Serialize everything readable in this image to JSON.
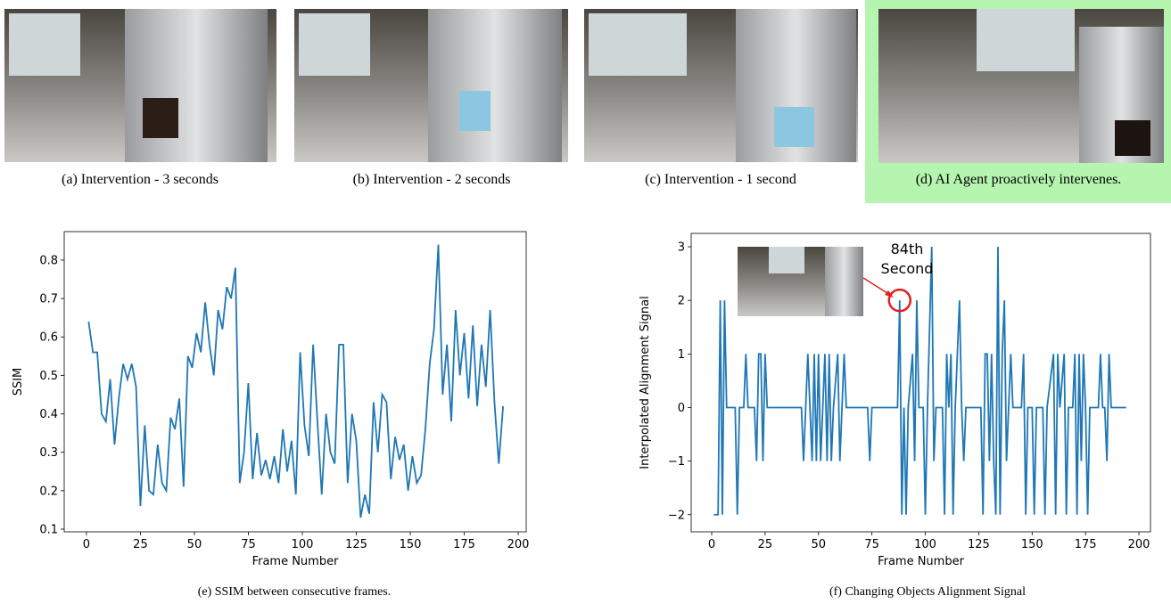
{
  "panels": [
    {
      "caption": "(a) Intervention - 3 seconds"
    },
    {
      "caption": "(b) Intervention - 2 seconds"
    },
    {
      "caption": "(c) Intervention - 1 second"
    },
    {
      "caption": "(d) AI Agent proactively intervenes."
    }
  ],
  "chart_data": [
    {
      "type": "line",
      "caption": "(e) SSIM between consecutive frames.",
      "xlabel": "Frame Number",
      "ylabel": "SSIM",
      "color": "#1f77b4",
      "xlim": [
        -10.3,
        203.7
      ],
      "xticks": [
        0,
        25,
        50,
        75,
        100,
        125,
        150,
        175,
        200
      ],
      "ylim": [
        0.093,
        0.874
      ],
      "yticks": [
        0.1,
        0.2,
        0.3,
        0.4,
        0.5,
        0.6,
        0.7,
        0.8
      ],
      "x": [
        1,
        3,
        5,
        7,
        9,
        11,
        13,
        15,
        17,
        19,
        21,
        23,
        25,
        27,
        29,
        31,
        33,
        35,
        37,
        39,
        41,
        43,
        45,
        47,
        49,
        51,
        53,
        55,
        57,
        59,
        61,
        63,
        65,
        67,
        69,
        71,
        73,
        75,
        77,
        79,
        81,
        83,
        85,
        87,
        89,
        91,
        93,
        95,
        97,
        99,
        101,
        103,
        105,
        107,
        109,
        111,
        113,
        115,
        117,
        119,
        121,
        123,
        125,
        127,
        129,
        131,
        133,
        135,
        137,
        139,
        141,
        143,
        145,
        147,
        149,
        151,
        153,
        155,
        157,
        159,
        161,
        163,
        165,
        167,
        169,
        171,
        173,
        175,
        177,
        179,
        181,
        183,
        185,
        187,
        189,
        191,
        193
      ],
      "values": [
        0.64,
        0.56,
        0.56,
        0.4,
        0.38,
        0.49,
        0.32,
        0.44,
        0.53,
        0.49,
        0.53,
        0.47,
        0.16,
        0.37,
        0.2,
        0.19,
        0.32,
        0.22,
        0.2,
        0.39,
        0.36,
        0.44,
        0.21,
        0.55,
        0.52,
        0.61,
        0.56,
        0.69,
        0.58,
        0.5,
        0.67,
        0.62,
        0.73,
        0.7,
        0.78,
        0.22,
        0.3,
        0.48,
        0.23,
        0.35,
        0.24,
        0.28,
        0.23,
        0.29,
        0.22,
        0.36,
        0.25,
        0.33,
        0.19,
        0.56,
        0.37,
        0.29,
        0.58,
        0.38,
        0.19,
        0.4,
        0.3,
        0.27,
        0.58,
        0.58,
        0.22,
        0.4,
        0.33,
        0.13,
        0.19,
        0.14,
        0.43,
        0.3,
        0.45,
        0.43,
        0.23,
        0.34,
        0.28,
        0.32,
        0.2,
        0.29,
        0.22,
        0.24,
        0.36,
        0.53,
        0.62,
        0.84,
        0.45,
        0.58,
        0.38,
        0.67,
        0.5,
        0.61,
        0.44,
        0.63,
        0.42,
        0.58,
        0.47,
        0.67,
        0.43,
        0.27,
        0.42
      ]
    },
    {
      "type": "line",
      "caption": "(f) Changing Objects Alignment Signal",
      "xlabel": "Frame Number",
      "ylabel": "Interpolated Alignment Signal",
      "color": "#1f77b4",
      "xlim": [
        -9.6,
        205.4
      ],
      "xticks": [
        0,
        25,
        50,
        75,
        100,
        125,
        150,
        175,
        200
      ],
      "ylim": [
        -2.32,
        3.25
      ],
      "yticks": [
        {
          "value": -2,
          "label": "−2"
        },
        {
          "value": -1,
          "label": "−1"
        },
        0,
        1,
        2,
        3
      ],
      "annotation": [
        "84th",
        "Second"
      ],
      "x": [
        1,
        3,
        4,
        5,
        6,
        7,
        11,
        12,
        13,
        15,
        16,
        17,
        20,
        21,
        22,
        23,
        24,
        25,
        26,
        42,
        43,
        45,
        46,
        47,
        48,
        49,
        50,
        51,
        52,
        53,
        54,
        55,
        56,
        57,
        59,
        60,
        61,
        62,
        63,
        73,
        74,
        75,
        87,
        88,
        89,
        90,
        91,
        92,
        94,
        95,
        96,
        97,
        99,
        100,
        101,
        103,
        104,
        105,
        108,
        109,
        110,
        111,
        112,
        113,
        114,
        115,
        116,
        117,
        118,
        119,
        126,
        127,
        128,
        129,
        130,
        131,
        132,
        133,
        134,
        135,
        136,
        137,
        138,
        139,
        140,
        141,
        145,
        146,
        147,
        148,
        150,
        151,
        152,
        155,
        156,
        157,
        160,
        161,
        162,
        163,
        165,
        166,
        167,
        169,
        170,
        171,
        172,
        173,
        174,
        175,
        176,
        177,
        181,
        182,
        183,
        184,
        185,
        186,
        187,
        194
      ],
      "values": [
        -2,
        -2,
        2,
        -2,
        2,
        0,
        0,
        -2,
        0,
        0,
        1,
        0,
        0,
        -1,
        1,
        1,
        -1,
        1,
        0,
        0,
        -1,
        1,
        0,
        -1,
        1,
        -1,
        1,
        -1,
        0,
        1,
        -1,
        1,
        -1,
        0,
        1,
        -1,
        0,
        1,
        0,
        0,
        -1,
        0,
        0,
        2,
        -2,
        0,
        -2,
        0,
        1,
        -1,
        2,
        0,
        0,
        -2,
        0,
        3,
        -1,
        0,
        0,
        -2,
        1,
        0,
        1,
        -2,
        0,
        1,
        2,
        0,
        -1,
        0,
        0,
        -2,
        1,
        1,
        -1,
        1,
        -1,
        -2,
        3,
        -2,
        1,
        2,
        -1,
        0,
        1,
        0,
        0,
        1,
        -2,
        0,
        0,
        -2,
        0,
        0,
        -2,
        0,
        1,
        -2,
        1,
        0,
        1,
        -2,
        0,
        0,
        1,
        -2,
        1,
        -1,
        1,
        0,
        -2,
        0,
        0,
        1,
        0,
        0,
        -1,
        1,
        0,
        0
      ]
    }
  ]
}
